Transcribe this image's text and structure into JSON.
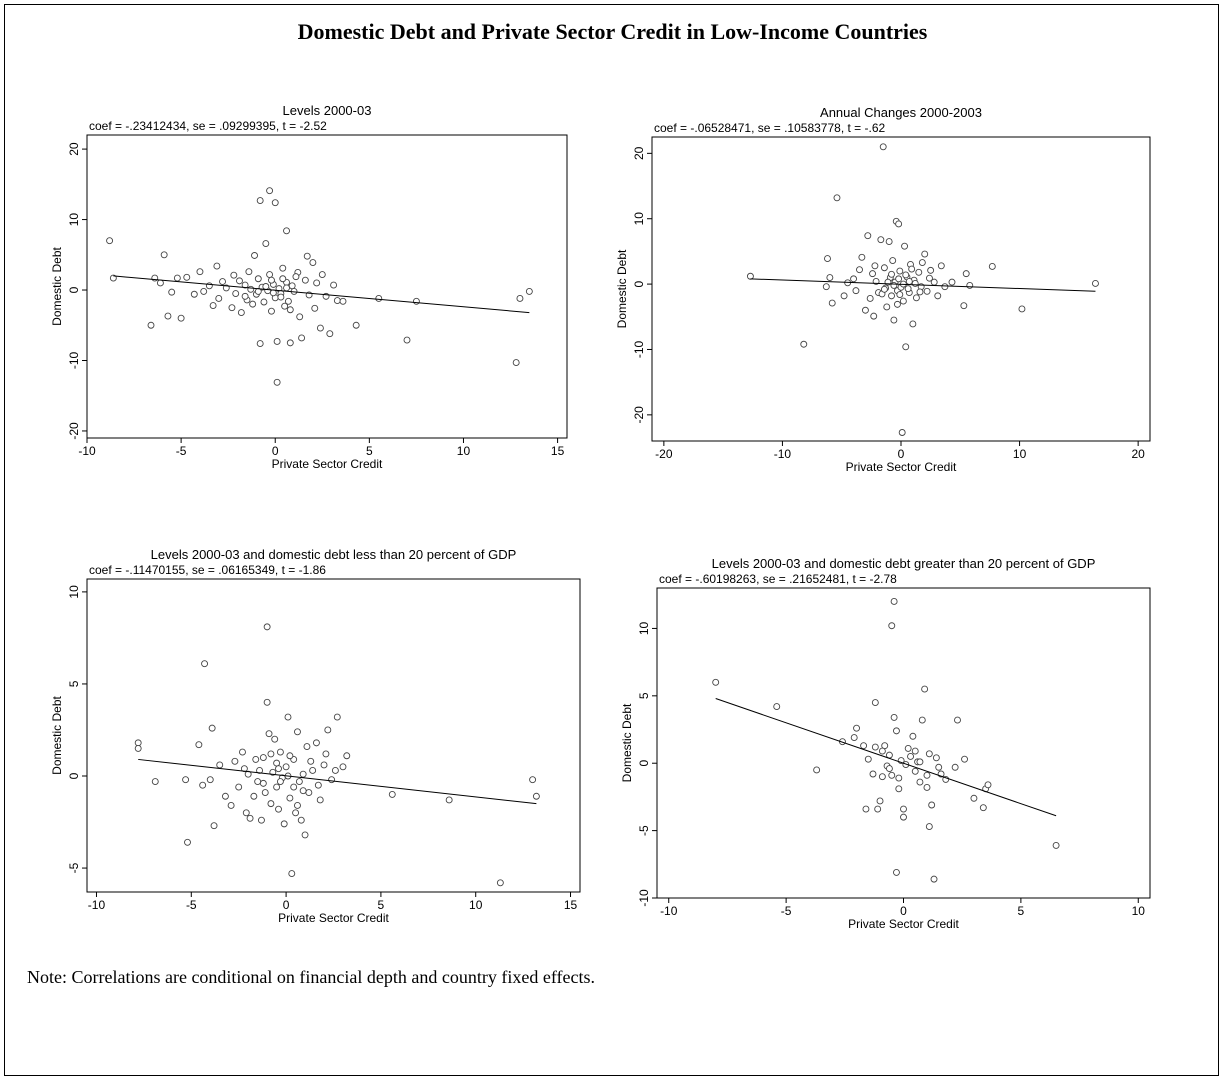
{
  "title": "Domestic Debt and Private Sector Credit in Low-Income Countries",
  "note": "Note: Correlations are conditional on financial depth and country fixed effects.",
  "chart_data": [
    {
      "type": "scatter",
      "title": "Levels 2000-03",
      "subtitle": "coef = -.23412434, se = .09299395, t = -2.52",
      "xlabel": "Private Sector Credit",
      "ylabel": "Domestic Debt",
      "xlim": [
        -10,
        15.5
      ],
      "ylim": [
        -21,
        22
      ],
      "xticks": [
        -10,
        -5,
        0,
        5,
        10,
        15
      ],
      "yticks": [
        -20,
        -10,
        0,
        10,
        20
      ],
      "fit_line": {
        "x": [
          -8.6,
          13.5
        ],
        "y": [
          2.0,
          -3.2
        ]
      },
      "points": [
        [
          -8.8,
          7.0
        ],
        [
          -8.6,
          1.7
        ],
        [
          -6.6,
          -5.0
        ],
        [
          -6.4,
          1.7
        ],
        [
          -6.1,
          1.0
        ],
        [
          -5.9,
          5.0
        ],
        [
          -5.7,
          -3.7
        ],
        [
          -5.5,
          -0.3
        ],
        [
          -5.2,
          1.7
        ],
        [
          -5.0,
          -4.0
        ],
        [
          -4.7,
          1.8
        ],
        [
          -4.3,
          -0.6
        ],
        [
          -4.0,
          2.6
        ],
        [
          -3.8,
          -0.2
        ],
        [
          -3.5,
          0.6
        ],
        [
          -3.3,
          -2.2
        ],
        [
          -3.1,
          3.4
        ],
        [
          -3.0,
          -1.2
        ],
        [
          -2.8,
          1.2
        ],
        [
          -2.6,
          0.3
        ],
        [
          -2.3,
          -2.5
        ],
        [
          -2.2,
          2.1
        ],
        [
          -2.1,
          -0.5
        ],
        [
          -1.9,
          1.3
        ],
        [
          -1.8,
          -3.2
        ],
        [
          -1.6,
          0.7
        ],
        [
          -1.5,
          -1.4
        ],
        [
          -1.4,
          2.6
        ],
        [
          -1.3,
          0.1
        ],
        [
          -1.2,
          -2.0
        ],
        [
          -1.1,
          4.9
        ],
        [
          -1.0,
          -0.6
        ],
        [
          -0.9,
          1.6
        ],
        [
          -0.8,
          12.7
        ],
        [
          -0.8,
          -7.6
        ],
        [
          -0.7,
          0.4
        ],
        [
          -0.6,
          -1.7
        ],
        [
          -0.5,
          6.6
        ],
        [
          -0.4,
          -0.1
        ],
        [
          -0.3,
          14.1
        ],
        [
          -0.3,
          2.2
        ],
        [
          -0.2,
          -3.0
        ],
        [
          -0.1,
          0.8
        ],
        [
          0.0,
          12.4
        ],
        [
          0.0,
          -1.1
        ],
        [
          0.1,
          -7.3
        ],
        [
          0.1,
          -13.1
        ],
        [
          0.2,
          0.2
        ],
        [
          0.3,
          -0.5
        ],
        [
          0.4,
          3.1
        ],
        [
          0.5,
          -2.3
        ],
        [
          0.6,
          8.4
        ],
        [
          0.6,
          1.1
        ],
        [
          0.7,
          -1.6
        ],
        [
          0.8,
          -7.5
        ],
        [
          0.9,
          0.6
        ],
        [
          1.0,
          -0.2
        ],
        [
          1.2,
          2.5
        ],
        [
          1.3,
          -3.8
        ],
        [
          1.4,
          -6.8
        ],
        [
          1.6,
          1.4
        ],
        [
          1.7,
          4.8
        ],
        [
          1.8,
          -0.7
        ],
        [
          2.0,
          3.9
        ],
        [
          2.1,
          -2.6
        ],
        [
          2.2,
          1.0
        ],
        [
          2.4,
          -5.4
        ],
        [
          2.5,
          2.2
        ],
        [
          2.7,
          -0.9
        ],
        [
          2.9,
          -6.2
        ],
        [
          3.1,
          0.7
        ],
        [
          3.3,
          -1.5
        ],
        [
          3.6,
          -1.6
        ],
        [
          4.3,
          -5.0
        ],
        [
          5.5,
          -1.2
        ],
        [
          7.0,
          -7.1
        ],
        [
          7.5,
          -1.6
        ],
        [
          12.8,
          -10.3
        ],
        [
          13.0,
          -1.2
        ],
        [
          13.5,
          -0.2
        ],
        [
          -0.5,
          0.5
        ],
        [
          -0.2,
          1.4
        ],
        [
          0.3,
          -1.0
        ],
        [
          0.6,
          0.3
        ],
        [
          -0.9,
          -0.2
        ],
        [
          1.1,
          1.9
        ],
        [
          -1.6,
          -0.9
        ],
        [
          0.8,
          -2.8
        ],
        [
          -0.1,
          -0.4
        ],
        [
          0.4,
          1.6
        ]
      ]
    },
    {
      "type": "scatter",
      "title": "Annual Changes 2000-2003",
      "subtitle": "coef = -.06528471, se = .10583778, t = -.62",
      "xlabel": "Private Sector Credit",
      "ylabel": "Domestic Debt",
      "xlim": [
        -21,
        21
      ],
      "ylim": [
        -24,
        22.5
      ],
      "xticks": [
        -20,
        -10,
        0,
        10,
        20
      ],
      "yticks": [
        -20,
        -10,
        0,
        10,
        20
      ],
      "fit_line": {
        "x": [
          -12.7,
          16.4
        ],
        "y": [
          0.8,
          -1.1
        ]
      },
      "points": [
        [
          -12.7,
          1.2
        ],
        [
          -8.2,
          -9.2
        ],
        [
          -6.3,
          -0.4
        ],
        [
          -6.2,
          3.9
        ],
        [
          -6.0,
          1.0
        ],
        [
          -5.8,
          -2.9
        ],
        [
          -5.4,
          13.2
        ],
        [
          -4.8,
          -1.8
        ],
        [
          -4.5,
          0.2
        ],
        [
          -4.0,
          0.8
        ],
        [
          -3.8,
          -1.0
        ],
        [
          -3.5,
          2.2
        ],
        [
          -3.3,
          4.1
        ],
        [
          -3.0,
          -4.0
        ],
        [
          -2.8,
          7.4
        ],
        [
          -2.6,
          -2.2
        ],
        [
          -2.4,
          1.6
        ],
        [
          -2.3,
          -4.9
        ],
        [
          -2.1,
          0.4
        ],
        [
          -1.9,
          -1.3
        ],
        [
          -1.7,
          6.8
        ],
        [
          -1.5,
          21.0
        ],
        [
          -1.4,
          2.5
        ],
        [
          -1.3,
          -0.6
        ],
        [
          -1.2,
          -3.5
        ],
        [
          -1.0,
          6.5
        ],
        [
          -0.9,
          1.0
        ],
        [
          -0.8,
          -1.8
        ],
        [
          -0.7,
          3.6
        ],
        [
          -0.6,
          -5.5
        ],
        [
          -0.5,
          0.3
        ],
        [
          -0.4,
          9.6
        ],
        [
          -0.3,
          -1.0
        ],
        [
          -0.2,
          9.2
        ],
        [
          -0.1,
          2.0
        ],
        [
          0.0,
          -0.5
        ],
        [
          0.1,
          -22.7
        ],
        [
          0.2,
          -2.6
        ],
        [
          0.3,
          5.8
        ],
        [
          0.4,
          -9.6
        ],
        [
          0.5,
          1.1
        ],
        [
          0.7,
          -1.3
        ],
        [
          0.8,
          3.0
        ],
        [
          1.0,
          -6.1
        ],
        [
          1.1,
          0.6
        ],
        [
          1.3,
          -2.1
        ],
        [
          1.5,
          1.8
        ],
        [
          1.7,
          -0.4
        ],
        [
          2.0,
          4.6
        ],
        [
          2.2,
          -1.1
        ],
        [
          2.5,
          2.1
        ],
        [
          2.8,
          0.3
        ],
        [
          3.1,
          -1.8
        ],
        [
          3.4,
          2.8
        ],
        [
          3.7,
          -0.4
        ],
        [
          4.3,
          0.3
        ],
        [
          5.3,
          -3.3
        ],
        [
          5.5,
          1.6
        ],
        [
          5.8,
          -0.2
        ],
        [
          7.7,
          2.7
        ],
        [
          10.2,
          -3.8
        ],
        [
          16.4,
          0.1
        ],
        [
          -0.2,
          0.8
        ],
        [
          0.6,
          -0.7
        ],
        [
          -0.8,
          1.5
        ],
        [
          1.2,
          0.1
        ],
        [
          -1.6,
          -1.5
        ],
        [
          0.9,
          2.3
        ],
        [
          -0.3,
          -3.1
        ],
        [
          0.2,
          0.0
        ],
        [
          -1.1,
          0.3
        ],
        [
          1.6,
          -1.2
        ],
        [
          -2.2,
          2.8
        ],
        [
          2.4,
          0.9
        ],
        [
          -0.6,
          -0.2
        ],
        [
          0.4,
          1.4
        ],
        [
          -1.4,
          -0.8
        ],
        [
          1.8,
          3.3
        ],
        [
          -0.1,
          -1.6
        ],
        [
          0.7,
          0.4
        ]
      ]
    },
    {
      "type": "scatter",
      "title": "Levels 2000-03 and domestic debt less than 20 percent of GDP",
      "subtitle": "coef = -.11470155, se = .06165349, t = -1.86",
      "xlabel": "Private Sector Credit",
      "ylabel": "Domestic Debt",
      "xlim": [
        -10.5,
        15.5
      ],
      "ylim": [
        -6.3,
        10.7
      ],
      "xticks": [
        -10,
        -5,
        0,
        5,
        10,
        15
      ],
      "yticks": [
        -5,
        0,
        5,
        10
      ],
      "fit_line": {
        "x": [
          -7.8,
          13.2
        ],
        "y": [
          0.9,
          -1.5
        ]
      },
      "points": [
        [
          -7.8,
          1.8
        ],
        [
          -7.8,
          1.5
        ],
        [
          -6.9,
          -0.3
        ],
        [
          -5.3,
          -0.2
        ],
        [
          -5.2,
          -3.6
        ],
        [
          -4.6,
          1.7
        ],
        [
          -4.4,
          -0.5
        ],
        [
          -4.3,
          6.1
        ],
        [
          -4.0,
          -0.2
        ],
        [
          -3.9,
          2.6
        ],
        [
          -3.8,
          -2.7
        ],
        [
          -3.5,
          0.6
        ],
        [
          -3.2,
          -1.1
        ],
        [
          -2.9,
          -1.6
        ],
        [
          -2.7,
          0.8
        ],
        [
          -2.5,
          -0.6
        ],
        [
          -2.3,
          1.3
        ],
        [
          -2.2,
          0.4
        ],
        [
          -2.1,
          -2.0
        ],
        [
          -1.9,
          -2.3
        ],
        [
          -1.7,
          -1.1
        ],
        [
          -1.5,
          -0.3
        ],
        [
          -1.4,
          0.3
        ],
        [
          -1.3,
          -2.4
        ],
        [
          -1.2,
          1.0
        ],
        [
          -1.1,
          -0.9
        ],
        [
          -1.0,
          8.1
        ],
        [
          -1.0,
          4.0
        ],
        [
          -0.9,
          2.3
        ],
        [
          -0.8,
          -1.5
        ],
        [
          -0.7,
          0.2
        ],
        [
          -0.6,
          2.0
        ],
        [
          -0.5,
          -0.6
        ],
        [
          -0.4,
          -1.8
        ],
        [
          -0.3,
          1.3
        ],
        [
          -0.2,
          -0.1
        ],
        [
          -0.1,
          -2.6
        ],
        [
          0.0,
          0.5
        ],
        [
          0.1,
          3.2
        ],
        [
          0.2,
          -1.2
        ],
        [
          0.3,
          -5.3
        ],
        [
          0.4,
          0.9
        ],
        [
          0.5,
          -2.0
        ],
        [
          0.6,
          2.4
        ],
        [
          0.7,
          -0.3
        ],
        [
          0.8,
          -2.4
        ],
        [
          0.9,
          0.1
        ],
        [
          1.0,
          -3.2
        ],
        [
          1.1,
          1.6
        ],
        [
          1.2,
          -0.9
        ],
        [
          1.4,
          0.3
        ],
        [
          1.6,
          1.8
        ],
        [
          1.8,
          -1.3
        ],
        [
          2.0,
          0.6
        ],
        [
          2.2,
          2.5
        ],
        [
          2.4,
          -0.2
        ],
        [
          2.6,
          0.3
        ],
        [
          2.7,
          3.2
        ],
        [
          3.0,
          0.5
        ],
        [
          3.2,
          1.1
        ],
        [
          5.6,
          -1.0
        ],
        [
          8.6,
          -1.3
        ],
        [
          11.3,
          -5.8
        ],
        [
          13.0,
          -0.2
        ],
        [
          13.2,
          -1.1
        ],
        [
          -0.5,
          0.7
        ],
        [
          0.2,
          1.1
        ],
        [
          -1.2,
          -0.4
        ],
        [
          0.9,
          -0.8
        ],
        [
          -0.3,
          -0.3
        ],
        [
          1.3,
          0.8
        ],
        [
          -2.0,
          0.1
        ],
        [
          0.6,
          -1.6
        ],
        [
          -0.8,
          1.2
        ],
        [
          0.1,
          0.0
        ],
        [
          1.7,
          -0.5
        ],
        [
          -1.6,
          0.9
        ],
        [
          0.4,
          -0.6
        ],
        [
          2.1,
          1.2
        ],
        [
          -0.4,
          0.4
        ]
      ]
    },
    {
      "type": "scatter",
      "title": "Levels 2000-03 and domestic debt greater than 20 percent of GDP",
      "subtitle": "coef = -.60198263, se = .21652481, t = -2.78",
      "xlabel": "Private Sector Credit",
      "ylabel": "Domestic Debt",
      "xlim": [
        -10.5,
        10.5
      ],
      "ylim": [
        -10,
        13
      ],
      "xticks": [
        -10,
        -5,
        0,
        5,
        10
      ],
      "yticks": [
        -10,
        -5,
        0,
        5,
        10
      ],
      "fit_line": {
        "x": [
          -8.0,
          6.5
        ],
        "y": [
          4.8,
          -3.9
        ]
      },
      "points": [
        [
          -8.0,
          6.0
        ],
        [
          -5.4,
          4.2
        ],
        [
          -3.7,
          -0.5
        ],
        [
          -2.6,
          1.6
        ],
        [
          -2.1,
          1.9
        ],
        [
          -2.0,
          2.6
        ],
        [
          -1.7,
          1.3
        ],
        [
          -1.6,
          -3.4
        ],
        [
          -1.3,
          -0.8
        ],
        [
          -1.2,
          1.2
        ],
        [
          -1.2,
          4.5
        ],
        [
          -1.1,
          -3.4
        ],
        [
          -1.0,
          -2.8
        ],
        [
          -0.9,
          -1.0
        ],
        [
          -0.8,
          1.3
        ],
        [
          -0.7,
          -0.2
        ],
        [
          -0.6,
          0.6
        ],
        [
          -0.5,
          -0.9
        ],
        [
          -0.5,
          10.2
        ],
        [
          -0.4,
          12.0
        ],
        [
          -0.4,
          3.4
        ],
        [
          -0.3,
          -8.1
        ],
        [
          -0.3,
          2.4
        ],
        [
          -0.2,
          -1.9
        ],
        [
          -0.1,
          0.2
        ],
        [
          0.0,
          -3.4
        ],
        [
          0.0,
          -4.0
        ],
        [
          0.1,
          -0.1
        ],
        [
          0.2,
          1.1
        ],
        [
          0.4,
          2.0
        ],
        [
          0.5,
          -0.6
        ],
        [
          0.6,
          0.1
        ],
        [
          0.7,
          -1.4
        ],
        [
          0.8,
          3.2
        ],
        [
          0.9,
          5.5
        ],
        [
          1.0,
          -0.9
        ],
        [
          1.1,
          0.7
        ],
        [
          1.1,
          -4.7
        ],
        [
          1.2,
          -3.1
        ],
        [
          1.3,
          -8.6
        ],
        [
          1.4,
          0.4
        ],
        [
          1.5,
          -0.3
        ],
        [
          1.8,
          -1.2
        ],
        [
          2.2,
          -0.3
        ],
        [
          2.3,
          3.2
        ],
        [
          2.6,
          0.3
        ],
        [
          3.0,
          -2.6
        ],
        [
          3.4,
          -3.3
        ],
        [
          3.5,
          -1.9
        ],
        [
          3.6,
          -1.6
        ],
        [
          6.5,
          -6.1
        ],
        [
          -0.6,
          -0.4
        ],
        [
          0.3,
          0.5
        ],
        [
          -0.9,
          0.9
        ],
        [
          0.7,
          0.1
        ],
        [
          -1.5,
          0.3
        ],
        [
          1.0,
          -1.8
        ],
        [
          -0.2,
          -1.1
        ],
        [
          0.5,
          0.9
        ],
        [
          1.6,
          -0.8
        ]
      ]
    }
  ]
}
